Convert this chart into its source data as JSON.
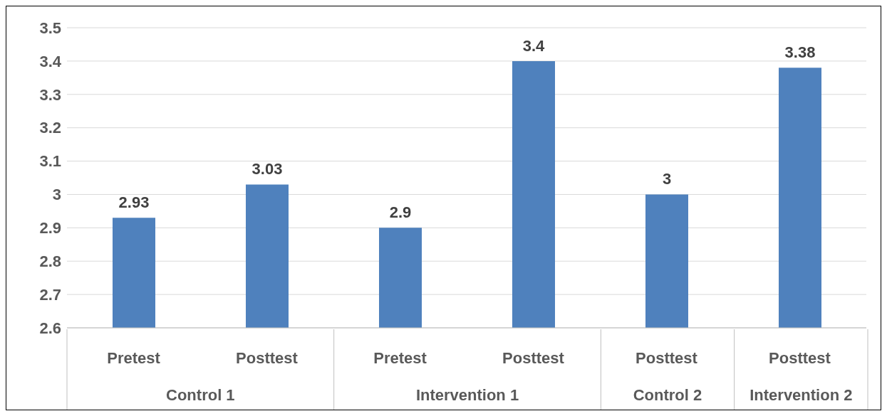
{
  "chart_data": {
    "type": "bar",
    "categories": [
      "Pretest",
      "Posttest",
      "Pretest",
      "Posttest",
      "Posttest",
      "Posttest"
    ],
    "values": [
      2.93,
      3.03,
      2.9,
      3.4,
      3,
      3.38
    ],
    "color": "#4f81bd",
    "ylim": [
      2.6,
      3.5
    ],
    "yticks": [
      2.6,
      2.7,
      2.8,
      2.9,
      3,
      3.1,
      3.2,
      3.3,
      3.4,
      3.5
    ],
    "grid": "y",
    "data_labels": true,
    "annotations": [
      "Control 1",
      "Intervention 1",
      "Control 2",
      "Intervention 2"
    ]
  }
}
